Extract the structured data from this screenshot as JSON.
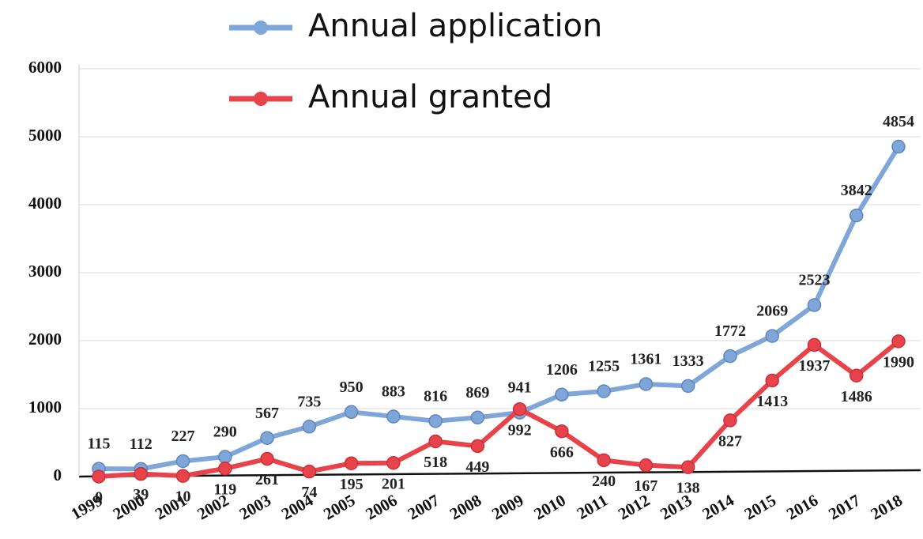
{
  "chart_data": {
    "type": "line",
    "categories": [
      "1999",
      "2000",
      "2001",
      "2002",
      "2003",
      "2004",
      "2005",
      "2006",
      "2007",
      "2008",
      "2009",
      "2010",
      "2011",
      "2012",
      "2013",
      "2014",
      "2015",
      "2016",
      "2017",
      "2018"
    ],
    "series": [
      {
        "name": "Annual application",
        "color": "#7ea6d8",
        "values": [
          115,
          112,
          227,
          290,
          567,
          735,
          950,
          883,
          816,
          869,
          941,
          1206,
          1255,
          1361,
          1333,
          1772,
          2069,
          2523,
          3842,
          4854
        ]
      },
      {
        "name": "Annual granted",
        "color": "#e8434b",
        "values": [
          0,
          39,
          10,
          119,
          261,
          74,
          195,
          201,
          518,
          449,
          992,
          666,
          240,
          167,
          138,
          827,
          1413,
          1937,
          1486,
          1990
        ]
      }
    ],
    "ylim": [
      0,
      6000
    ],
    "yticks": [
      0,
      1000,
      2000,
      3000,
      4000,
      5000,
      6000
    ],
    "grid": true,
    "legend": "top"
  }
}
